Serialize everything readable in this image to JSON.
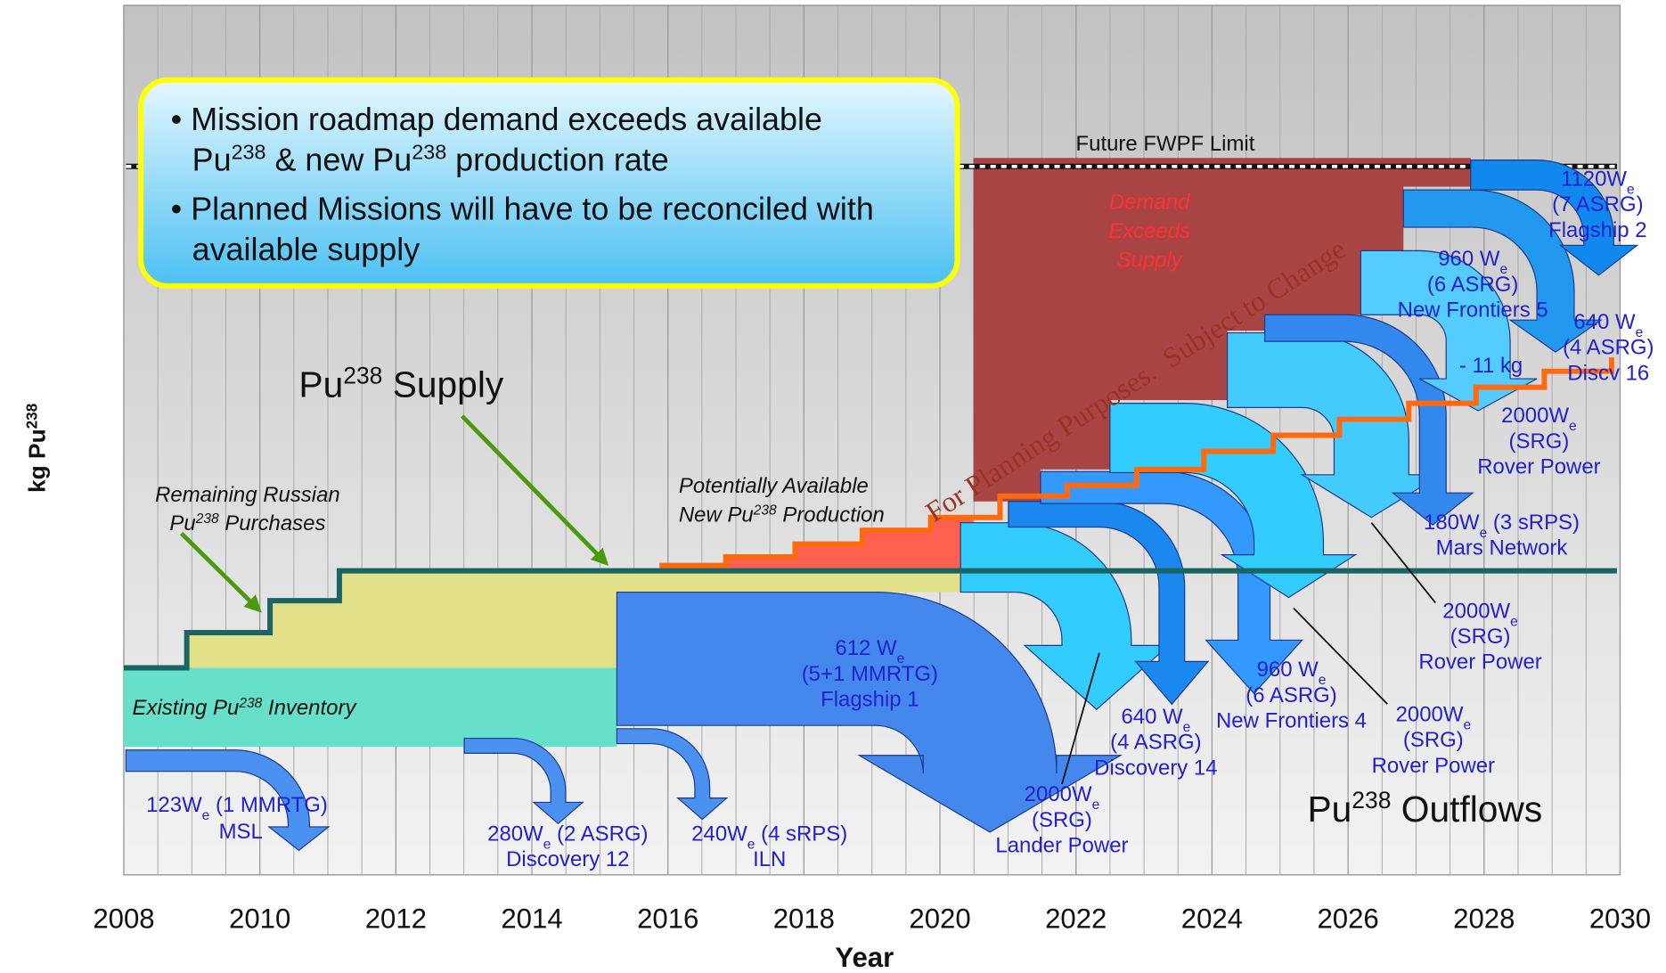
{
  "x_axis": {
    "title": "Year",
    "ticks": [
      2008,
      2010,
      2012,
      2014,
      2016,
      2018,
      2020,
      2022,
      2024,
      2026,
      2028,
      2030
    ]
  },
  "y_axis": {
    "title": [
      [
        "kg Pu",
        {
          "sup": "238"
        }
      ]
    ]
  },
  "labels": [
    {
      "lines": [
        [
          "• Mission roadmap demand exceeds available"
        ],
        [
          "Pu",
          {
            "sup": "238"
          },
          " & new Pu",
          {
            "sup": "238"
          },
          " production rate"
        ]
      ]
    },
    {
      "lines": [
        [
          "• Planned Missions will have to be reconciled with"
        ],
        [
          "available supply"
        ]
      ]
    },
    {
      "lines": [
        [
          "Pu",
          {
            "sup": "238"
          },
          " Supply"
        ]
      ]
    },
    {
      "lines": [
        [
          "Remaining Russian"
        ],
        [
          "Pu",
          {
            "sup": "238"
          },
          " Purchases"
        ]
      ]
    },
    {
      "lines": [
        [
          "Potentially Available"
        ],
        [
          "New Pu",
          {
            "sup": "238"
          },
          " Production"
        ]
      ]
    },
    {
      "lines": [
        [
          "Existing Pu",
          {
            "sup": "238"
          },
          " Inventory"
        ]
      ]
    },
    {
      "lines": [
        [
          "Future FWPF Limit"
        ]
      ]
    },
    {
      "lines": [
        [
          "Demand"
        ],
        [
          "Exceeds"
        ],
        [
          "Supply"
        ]
      ]
    },
    {
      "lines": [
        [
          "Pu",
          {
            "sup": "238"
          },
          " Outflows"
        ]
      ]
    },
    {
      "lines": [
        [
          "123W",
          {
            "sub": "e"
          },
          " (1 MMRTG)"
        ],
        [
          "MSL"
        ]
      ]
    },
    {
      "lines": [
        [
          "280W",
          {
            "sub": "e"
          },
          " (2 ASRG)"
        ],
        [
          "Discovery 12"
        ]
      ]
    },
    {
      "lines": [
        [
          "240W",
          {
            "sub": "e"
          },
          " (4 sRPS)"
        ],
        [
          "ILN"
        ]
      ]
    },
    {
      "lines": [
        [
          "612 W",
          {
            "sub": "e"
          }
        ],
        [
          "(5+1 MMRTG)"
        ],
        [
          "Flagship 1"
        ]
      ]
    },
    {
      "lines": [
        [
          "2000W",
          {
            "sub": "e"
          }
        ],
        [
          "(SRG)"
        ],
        [
          "Lander Power"
        ]
      ]
    },
    {
      "lines": [
        [
          "640 W",
          {
            "sub": "e"
          }
        ],
        [
          "(4 ASRG)"
        ],
        [
          "Discovery 14"
        ]
      ]
    },
    {
      "lines": [
        [
          "960 W",
          {
            "sub": "e"
          }
        ],
        [
          "(6 ASRG)"
        ],
        [
          "New Frontiers 4"
        ]
      ]
    },
    {
      "lines": [
        [
          "2000W",
          {
            "sub": "e"
          }
        ],
        [
          "(SRG)"
        ],
        [
          "Rover Power"
        ]
      ]
    },
    {
      "lines": [
        [
          "2000W",
          {
            "sub": "e"
          }
        ],
        [
          "(SRG)"
        ],
        [
          "Rover Power"
        ]
      ]
    },
    {
      "lines": [
        [
          "180W",
          {
            "sub": "e"
          },
          " (3 sRPS)"
        ],
        [
          "Mars Network"
        ]
      ]
    },
    {
      "lines": [
        [
          "2000W",
          {
            "sub": "e"
          }
        ],
        [
          "(SRG)"
        ],
        [
          "Rover Power"
        ]
      ]
    },
    {
      "lines": [
        [
          "- 11 kg"
        ]
      ]
    },
    {
      "lines": [
        [
          "640 W",
          {
            "sub": "e"
          }
        ],
        [
          "(4 ASRG)"
        ],
        [
          "Discv 16"
        ]
      ]
    },
    {
      "lines": [
        [
          "960 W",
          {
            "sub": "e"
          }
        ],
        [
          "(6 ASRG)"
        ],
        [
          "New Frontiers 5"
        ]
      ]
    },
    {
      "lines": [
        [
          "1120W",
          {
            "sub": "e"
          }
        ],
        [
          "(7 ASRG)"
        ],
        [
          "Flagship 2"
        ]
      ]
    },
    {
      "lines": [
        [
          "For Planning Purposes.  Subject to Change"
        ]
      ]
    }
  ]
}
